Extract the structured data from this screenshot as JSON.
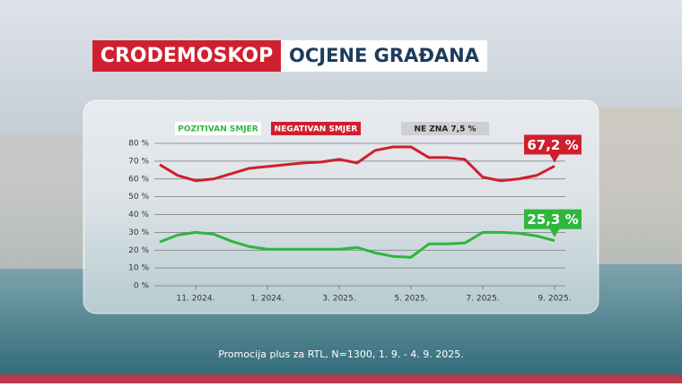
{
  "header": {
    "brand": "CRODEMOSKOP",
    "title": "OCJENE GRAĐANA"
  },
  "chart_data": {
    "type": "line",
    "x": [
      0,
      0.5,
      1,
      1.5,
      2,
      2.5,
      3,
      3.5,
      4,
      4.5,
      5,
      5.5,
      6,
      6.5,
      7,
      7.5,
      8,
      8.5,
      9,
      9.5,
      10,
      10.5,
      11
    ],
    "series": [
      {
        "name": "POZITIVAN SMJER",
        "color": "#2fb63c",
        "values": [
          24.6,
          28.5,
          30,
          29,
          25,
          22,
          20.5,
          20.5,
          20.5,
          20.5,
          20.5,
          21.5,
          18.5,
          16.5,
          16,
          23.5,
          23.5,
          24,
          30,
          30,
          29.5,
          28,
          25.3
        ],
        "value_labels": [
          null,
          null,
          null,
          null,
          null,
          null,
          null,
          null,
          null,
          null,
          null,
          null,
          null,
          null,
          null,
          null,
          null,
          null,
          null,
          null,
          null,
          null,
          "25,3 %"
        ]
      },
      {
        "name": "NEGATIVAN SMJER",
        "color": "#cf1f2e",
        "values": [
          68,
          62,
          59,
          60,
          63,
          66,
          67,
          68,
          69,
          69.5,
          71,
          69,
          76,
          78,
          78,
          72,
          72,
          71,
          61,
          59,
          60,
          62,
          67.2
        ],
        "value_labels": [
          null,
          null,
          null,
          null,
          null,
          null,
          null,
          null,
          null,
          null,
          null,
          null,
          null,
          null,
          null,
          null,
          null,
          null,
          null,
          null,
          null,
          null,
          "67,2 %"
        ]
      }
    ],
    "annotation": "NE ZNA 7,5 %",
    "xlim": [
      -0.15,
      11.3
    ],
    "xticks": [
      {
        "value": 1,
        "label": "11. 2024."
      },
      {
        "value": 3,
        "label": "1. 2024."
      },
      {
        "value": 5,
        "label": "3. 2025."
      },
      {
        "value": 7,
        "label": "5. 2025."
      },
      {
        "value": 9,
        "label": "7. 2025."
      },
      {
        "value": 11,
        "label": "9. 2025."
      }
    ],
    "ylim": [
      0,
      80
    ],
    "yticks": [
      {
        "value": 0,
        "label": "0 %"
      },
      {
        "value": 10,
        "label": "10 %"
      },
      {
        "value": 20,
        "label": "20 %"
      },
      {
        "value": 30,
        "label": "30 %"
      },
      {
        "value": 40,
        "label": "40 %"
      },
      {
        "value": 50,
        "label": "50 %"
      },
      {
        "value": 60,
        "label": "60 %"
      },
      {
        "value": 70,
        "label": "70 %"
      },
      {
        "value": 80,
        "label": "80 %"
      }
    ],
    "grid": true
  },
  "footer": {
    "source": "Promocija plus za RTL, N=1300, 1. 9. - 4. 9. 2025."
  }
}
